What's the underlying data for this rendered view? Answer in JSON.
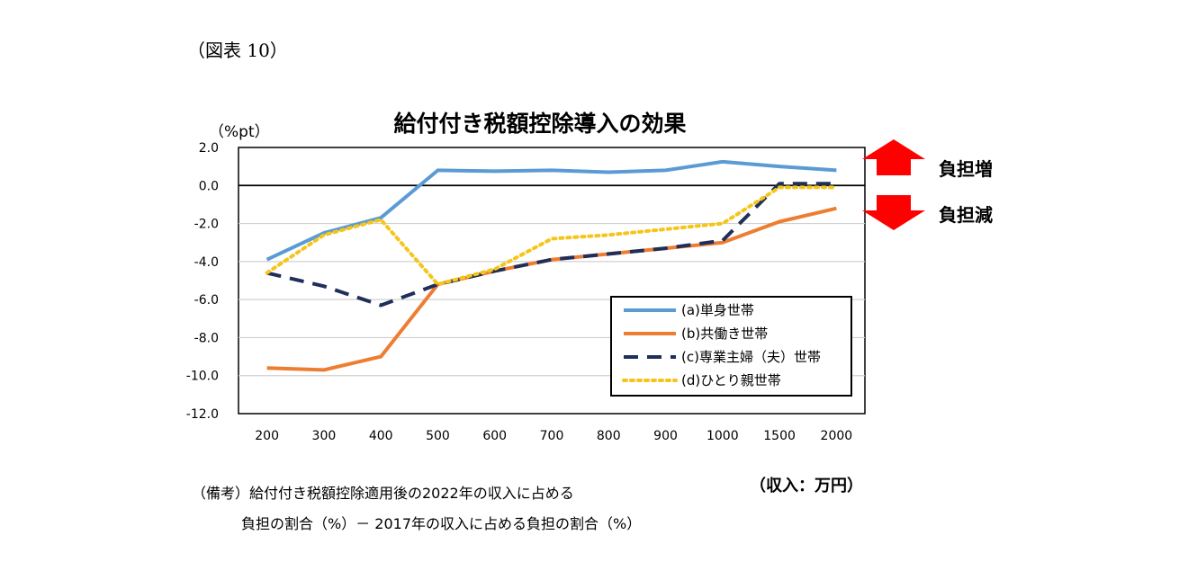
{
  "figure_label": "（図表 10）",
  "notes": {
    "line1": "（備考）給付付き税額控除適用後の2022年の収入に占める",
    "line2": "負担の割合（%）－ 2017年の収入に占める負担の割合（%）"
  },
  "annotations": {
    "up_label": "負担増",
    "down_label": "負担減",
    "up_color": "#ff0000",
    "down_color": "#ff0000"
  },
  "chart_data": {
    "type": "line",
    "title": "給付付き税額控除導入の効果",
    "ylabel": "（%pt）",
    "xlabel": "（収入：万円）",
    "categories": [
      "200",
      "300",
      "400",
      "500",
      "600",
      "700",
      "800",
      "900",
      "1000",
      "1500",
      "2000"
    ],
    "ylim": [
      -12.0,
      2.0
    ],
    "yticks": [
      2.0,
      0.0,
      -2.0,
      -4.0,
      -6.0,
      -8.0,
      -10.0,
      -12.0
    ],
    "grid": true,
    "legend_position": "bottom-right",
    "series": [
      {
        "name": "(a)単身世帯",
        "color": "#5b9bd5",
        "style": "solid",
        "values": [
          -3.9,
          -2.5,
          -1.7,
          0.8,
          0.75,
          0.8,
          0.7,
          0.8,
          1.25,
          1.0,
          0.8
        ]
      },
      {
        "name": "(b)共働き世帯",
        "color": "#ed7d31",
        "style": "solid",
        "values": [
          -9.6,
          -9.7,
          -9.0,
          -5.2,
          -4.5,
          -3.9,
          -3.6,
          -3.3,
          -3.0,
          -1.9,
          -1.2
        ]
      },
      {
        "name": "(c)専業主婦（夫）世帯",
        "color": "#1f2f5a",
        "style": "dashed",
        "values": [
          -4.6,
          -5.3,
          -6.3,
          -5.2,
          -4.5,
          -3.9,
          -3.6,
          -3.3,
          -2.9,
          0.1,
          0.1
        ]
      },
      {
        "name": "(d)ひとり親世帯",
        "color": "#f5c518",
        "style": "dotted",
        "values": [
          -4.6,
          -2.6,
          -1.8,
          -5.2,
          -4.4,
          -2.8,
          -2.6,
          -2.3,
          -2.0,
          -0.1,
          -0.1
        ]
      }
    ]
  }
}
